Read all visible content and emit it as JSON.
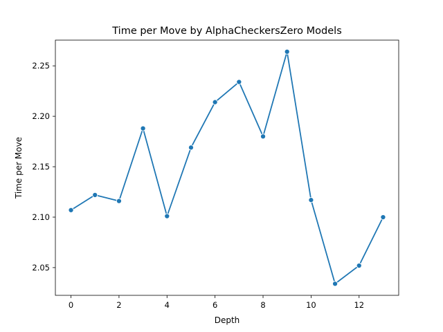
{
  "chart_data": {
    "type": "line",
    "title": "Time per Move by AlphaCheckersZero Models",
    "xlabel": "Depth",
    "ylabel": "Time per Move",
    "xlim": [
      -0.65,
      13.65
    ],
    "ylim": [
      2.0225,
      2.2755
    ],
    "xticks": [
      0,
      2,
      4,
      6,
      8,
      10,
      12
    ],
    "yticks": [
      2.05,
      2.1,
      2.15,
      2.2,
      2.25
    ],
    "ytick_labels": [
      "2.05",
      "2.10",
      "2.15",
      "2.20",
      "2.25"
    ],
    "grid": false,
    "series": [
      {
        "color": "#1f77b4",
        "marker": "circle",
        "x": [
          0,
          1,
          2,
          3,
          4,
          5,
          6,
          7,
          8,
          9,
          10,
          11,
          12,
          13
        ],
        "y": [
          2.107,
          2.122,
          2.116,
          2.188,
          2.101,
          2.169,
          2.214,
          2.234,
          2.18,
          2.264,
          2.117,
          2.034,
          2.052,
          2.1
        ]
      }
    ]
  }
}
